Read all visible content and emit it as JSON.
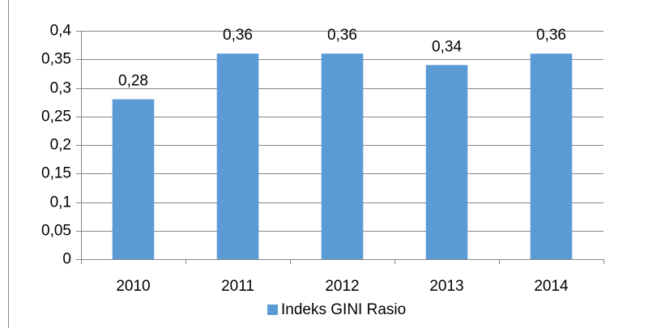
{
  "chart_data": {
    "type": "bar",
    "categories": [
      "2010",
      "2011",
      "2012",
      "2013",
      "2014"
    ],
    "series": [
      {
        "name": "Indeks GINI Rasio",
        "color": "#5b9bd5",
        "values": [
          0.28,
          0.36,
          0.36,
          0.34,
          0.36
        ],
        "value_labels": [
          "0,28",
          "0,36",
          "0,36",
          "0,34",
          "0,36"
        ]
      }
    ],
    "ylim": [
      0,
      0.4
    ],
    "yticks": [
      {
        "value": 0,
        "label": "0"
      },
      {
        "value": 0.05,
        "label": "0,05"
      },
      {
        "value": 0.1,
        "label": "0,1"
      },
      {
        "value": 0.15,
        "label": "0,15"
      },
      {
        "value": 0.2,
        "label": "0,2"
      },
      {
        "value": 0.25,
        "label": "0,25"
      },
      {
        "value": 0.3,
        "label": "0,3"
      },
      {
        "value": 0.35,
        "label": "0,35"
      },
      {
        "value": 0.4,
        "label": "0,4"
      }
    ],
    "grid": true,
    "legend": "bottom"
  }
}
